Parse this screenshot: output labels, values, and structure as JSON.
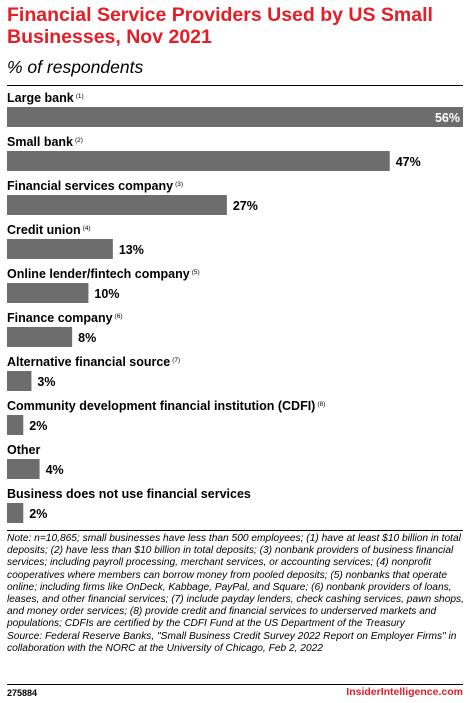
{
  "header": {
    "title": "Financial Service Providers Used by US Small Businesses, Nov 2021",
    "subtitle": "% of respondents"
  },
  "chart_data": {
    "type": "bar",
    "orientation": "horizontal",
    "categories": [
      "Large bank",
      "Small bank",
      "Financial services company",
      "Credit union",
      "Online lender/fintech company",
      "Finance company",
      "Alternative financial source",
      "Community development financial institution (CDFI)",
      "Other",
      "Business does not use financial services"
    ],
    "footnote_refs": [
      "(1)",
      "(2)",
      "(3)",
      "(4)",
      "(5)",
      "(6)",
      "(7)",
      "(8)",
      "",
      ""
    ],
    "values": [
      56,
      47,
      27,
      13,
      10,
      8,
      3,
      2,
      4,
      2
    ],
    "value_labels": [
      "56%",
      "47%",
      "27%",
      "13%",
      "10%",
      "8%",
      "3%",
      "2%",
      "4%",
      "2%"
    ],
    "xlim": [
      0,
      56
    ],
    "bar_color": "#6d6d6d",
    "grid": false
  },
  "footer": {
    "note": "Note: n=10,865; small businesses have less than 500 employees; (1) have at least $10 billion in total deposits; (2) have less than $10 billion in total deposits; (3) nonbank providers of business financial services; including payroll processing, merchant services, or accounting services; (4) nonprofit cooperatives where members can borrow money from pooled deposits; (5) nonbanks that operate online; including firms like OnDeck, Kabbage, PayPal, and Square; (6) nonbank providers of loans, leases, and other financial services; (7) include payday lenders, check cashing services, pawn shops, and money order services; (8) provide credit and financial services to underserved markets and populations; CDFIs are certified by the CDFI Fund at the US Department of the Treasury",
    "source": "Source: Federal Reserve Banks, \"Small Business Credit Survey 2022 Report on Employer Firms\" in collaboration with the NORC at the University of Chicago, Feb 2, 2022",
    "chart_id": "275884",
    "brand": "InsiderIntelligence.com"
  },
  "colors": {
    "title": "#e41e26",
    "bar": "#6d6d6d",
    "brand": "#e41e26"
  }
}
